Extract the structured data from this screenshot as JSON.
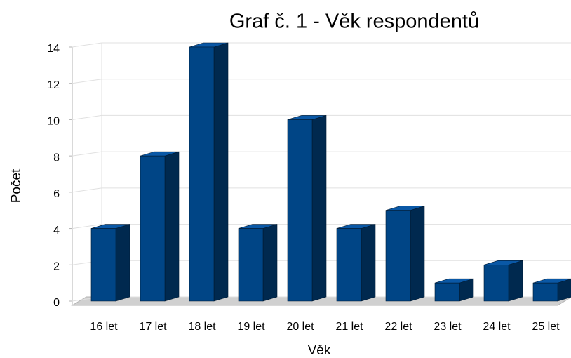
{
  "chart_data": {
    "type": "bar3d",
    "title": "Graf č. 1 - Věk respondentů",
    "x_label": "Věk",
    "y_label": "Počet",
    "categories": [
      "16 let",
      "17 let",
      "18 let",
      "19 let",
      "20 let",
      "21 let",
      "22 let",
      "23 let",
      "24 let",
      "25 let"
    ],
    "values": [
      4,
      8,
      14,
      4,
      10,
      4,
      5,
      1,
      2,
      1
    ],
    "color": "#004586",
    "ylim": [
      0,
      14
    ],
    "yticks": [
      0,
      2,
      4,
      6,
      8,
      10,
      12,
      14
    ],
    "grid": true
  }
}
